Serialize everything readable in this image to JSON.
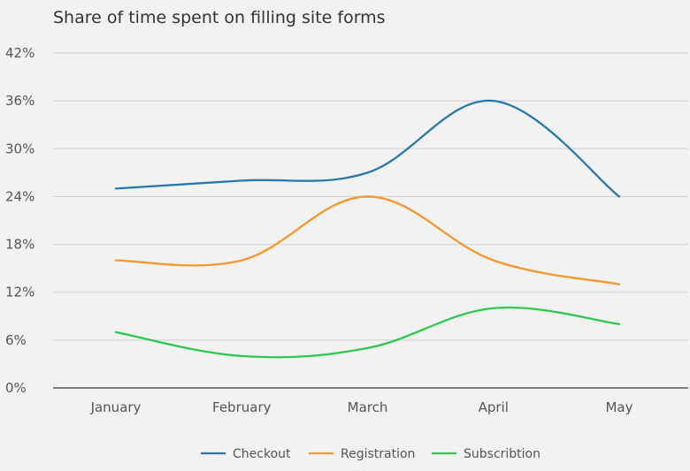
{
  "chart_data": {
    "type": "line",
    "title": "Share of time spent on filling site forms",
    "categories": [
      "January",
      "February",
      "March",
      "April",
      "May"
    ],
    "y_ticks": [
      "0%",
      "6%",
      "12%",
      "18%",
      "24%",
      "30%",
      "36%",
      "42%"
    ],
    "ylim": [
      0,
      42
    ],
    "grid": true,
    "legend_position": "bottom",
    "series": [
      {
        "name": "Checkout",
        "color": "#2878ae",
        "values": [
          25,
          26,
          27,
          36,
          24
        ]
      },
      {
        "name": "Registration",
        "color": "#f7962d",
        "values": [
          16,
          16,
          24,
          16,
          13
        ]
      },
      {
        "name": "Subscribtion",
        "color": "#2dc84d",
        "values": [
          7,
          4,
          5,
          10,
          8
        ]
      }
    ]
  }
}
